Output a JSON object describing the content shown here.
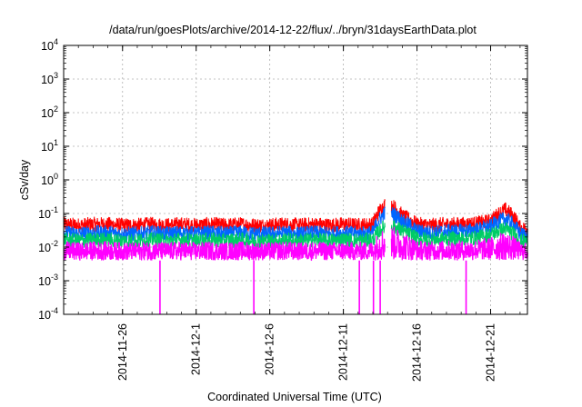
{
  "chart_data": {
    "type": "line",
    "title": "/data/run/goesPlots/archive/2014-12-22/flux/../bryn/31daysEarthData.plot",
    "xlabel": "Coordinated Universal Time (UTC)",
    "ylabel": "cSv/day",
    "yscale": "log",
    "ylim": [
      0.0001,
      10000
    ],
    "xlim": [
      "2014-11-22",
      "2014-12-23 12:00"
    ],
    "x_ticks": [
      "2014-11-26",
      "2014-12-1",
      "2014-12-6",
      "2014-12-11",
      "2014-12-16",
      "2014-12-21"
    ],
    "y_ticks": [
      {
        "base": "10",
        "exp": "-4"
      },
      {
        "base": "10",
        "exp": "-3"
      },
      {
        "base": "10",
        "exp": "-2"
      },
      {
        "base": "10",
        "exp": "-1"
      },
      {
        "base": "10",
        "exp": "0"
      },
      {
        "base": "10",
        "exp": "1"
      },
      {
        "base": "10",
        "exp": "2"
      },
      {
        "base": "10",
        "exp": "3"
      },
      {
        "base": "10",
        "exp": "4"
      }
    ],
    "grid": true,
    "legend": "none",
    "data_gap": [
      "2014-12-13 20:00",
      "2014-12-14 06:00"
    ],
    "dropouts": [
      "2014-11-28 13:00",
      "2014-12-4 22:00",
      "2014-12-12 02:00",
      "2014-12-13 01:00",
      "2014-12-13 12:00",
      "2014-12-19 08:00"
    ],
    "series": [
      {
        "color": "#ff0000",
        "peak_daily": [
          0.08,
          0.075,
          0.08,
          0.08,
          0.075,
          0.075,
          0.08,
          0.075,
          0.08,
          0.075,
          0.08,
          0.075,
          0.08,
          0.075,
          0.075,
          0.08,
          0.075,
          0.08,
          0.075,
          0.08,
          0.075,
          0.08,
          0.35,
          0.14,
          0.08,
          0.075,
          0.08,
          0.08,
          0.085,
          0.1,
          0.22,
          0.06
        ]
      },
      {
        "color": "#0066ff",
        "peak_daily": [
          0.045,
          0.042,
          0.045,
          0.045,
          0.042,
          0.042,
          0.045,
          0.042,
          0.045,
          0.042,
          0.045,
          0.042,
          0.045,
          0.042,
          0.042,
          0.045,
          0.042,
          0.045,
          0.042,
          0.045,
          0.042,
          0.045,
          0.2,
          0.1,
          0.05,
          0.045,
          0.05,
          0.05,
          0.055,
          0.07,
          0.12,
          0.04
        ]
      },
      {
        "color": "#00cc66",
        "peak_daily": [
          0.028,
          0.026,
          0.028,
          0.028,
          0.026,
          0.026,
          0.028,
          0.026,
          0.028,
          0.026,
          0.028,
          0.026,
          0.028,
          0.026,
          0.026,
          0.028,
          0.026,
          0.028,
          0.026,
          0.028,
          0.026,
          0.028,
          0.08,
          0.05,
          0.03,
          0.028,
          0.03,
          0.03,
          0.032,
          0.04,
          0.06,
          0.025
        ]
      },
      {
        "color": "#ff00ff",
        "peak_daily": [
          0.015,
          0.014,
          0.015,
          0.015,
          0.014,
          0.014,
          0.015,
          0.014,
          0.015,
          0.014,
          0.015,
          0.014,
          0.015,
          0.014,
          0.014,
          0.015,
          0.014,
          0.015,
          0.014,
          0.015,
          0.014,
          0.015,
          0.05,
          0.03,
          0.016,
          0.015,
          0.016,
          0.016,
          0.017,
          0.02,
          0.03,
          0.014
        ]
      }
    ],
    "floor": 0.004
  }
}
